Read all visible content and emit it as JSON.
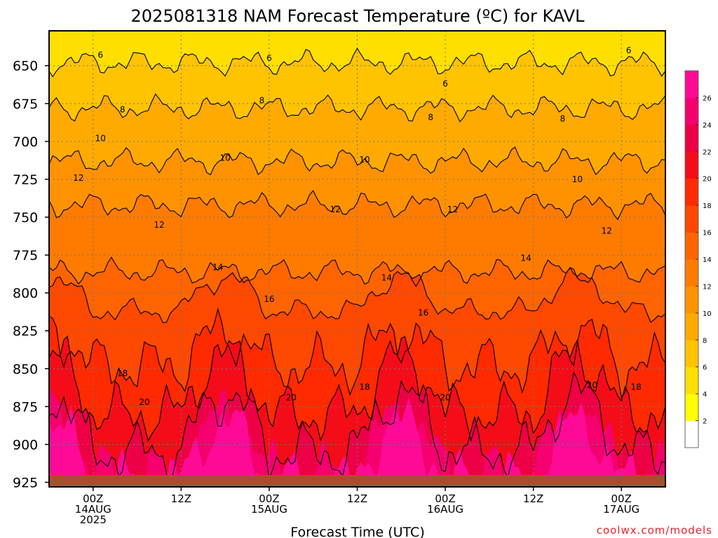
{
  "title": "2025081318 NAM Forecast Temperature (ºC) for KAVL",
  "xlabel": "Forecast Time (UTC)",
  "credit": "coolwx.com/models",
  "chart_data": {
    "type": "heatmap",
    "title": "2025081318 NAM Forecast Temperature (ºC) for KAVL",
    "xlabel": "Forecast Time (UTC)",
    "ylabel": "",
    "y_ticks": [
      "650",
      "675",
      "700",
      "725",
      "750",
      "775",
      "800",
      "825",
      "850",
      "875",
      "900",
      "925"
    ],
    "x_ticks": [
      {
        "hour": 6,
        "lines": [
          "00Z",
          "14AUG",
          "2025"
        ]
      },
      {
        "hour": 18,
        "lines": [
          "12Z"
        ]
      },
      {
        "hour": 30,
        "lines": [
          "00Z",
          "15AUG"
        ]
      },
      {
        "hour": 42,
        "lines": [
          "12Z"
        ]
      },
      {
        "hour": 54,
        "lines": [
          "00Z",
          "16AUG"
        ]
      },
      {
        "hour": 66,
        "lines": [
          "12Z"
        ]
      },
      {
        "hour": 78,
        "lines": [
          "00Z",
          "17AUG"
        ]
      }
    ],
    "xlim": [
      0,
      84
    ],
    "ylim": [
      928,
      627
    ],
    "grid": true,
    "colorbar": {
      "labels": [
        "2",
        "4",
        "6",
        "8",
        "10",
        "12",
        "14",
        "16",
        "18",
        "20",
        "22",
        "24",
        "26"
      ],
      "colors": [
        "#ffffff",
        "#ffff00",
        "#ffdf00",
        "#ffc300",
        "#ffaa00",
        "#ff9200",
        "#ff7b00",
        "#ff6400",
        "#ff4800",
        "#ff2a00",
        "#f50c19",
        "#ed0045",
        "#f5006e",
        "#ff0a96"
      ]
    },
    "isotherm_levels": [
      6,
      8,
      10,
      12,
      14,
      16,
      18,
      20,
      22
    ],
    "contour_labels": [
      {
        "value": "6",
        "hour": 7,
        "pressure": 643
      },
      {
        "value": "6",
        "hour": 30,
        "pressure": 645
      },
      {
        "value": "6",
        "hour": 54,
        "pressure": 662
      },
      {
        "value": "6",
        "hour": 79,
        "pressure": 640
      },
      {
        "value": "8",
        "hour": 10,
        "pressure": 679
      },
      {
        "value": "8",
        "hour": 29,
        "pressure": 673
      },
      {
        "value": "8",
        "hour": 52,
        "pressure": 684
      },
      {
        "value": "8",
        "hour": 70,
        "pressure": 685
      },
      {
        "value": "10",
        "hour": 7,
        "pressure": 698
      },
      {
        "value": "10",
        "hour": 24,
        "pressure": 711
      },
      {
        "value": "10",
        "hour": 43,
        "pressure": 712
      },
      {
        "value": "10",
        "hour": 72,
        "pressure": 725
      },
      {
        "value": "12",
        "hour": 4,
        "pressure": 724
      },
      {
        "value": "12",
        "hour": 15,
        "pressure": 755
      },
      {
        "value": "12",
        "hour": 39,
        "pressure": 745
      },
      {
        "value": "12",
        "hour": 55,
        "pressure": 745
      },
      {
        "value": "12",
        "hour": 76,
        "pressure": 759
      },
      {
        "value": "14",
        "hour": 23,
        "pressure": 783
      },
      {
        "value": "14",
        "hour": 46,
        "pressure": 790
      },
      {
        "value": "14",
        "hour": 65,
        "pressure": 777
      },
      {
        "value": "16",
        "hour": 30,
        "pressure": 804
      },
      {
        "value": "16",
        "hour": 51,
        "pressure": 813
      },
      {
        "value": "18",
        "hour": 10,
        "pressure": 853
      },
      {
        "value": "18",
        "hour": 43,
        "pressure": 862
      },
      {
        "value": "18",
        "hour": 80,
        "pressure": 862
      },
      {
        "value": "20",
        "hour": 13,
        "pressure": 872
      },
      {
        "value": "20",
        "hour": 33,
        "pressure": 869
      },
      {
        "value": "20",
        "hour": 54,
        "pressure": 869
      },
      {
        "value": "20",
        "hour": 74,
        "pressure": 861
      }
    ],
    "ground_color": "#a0522d"
  }
}
